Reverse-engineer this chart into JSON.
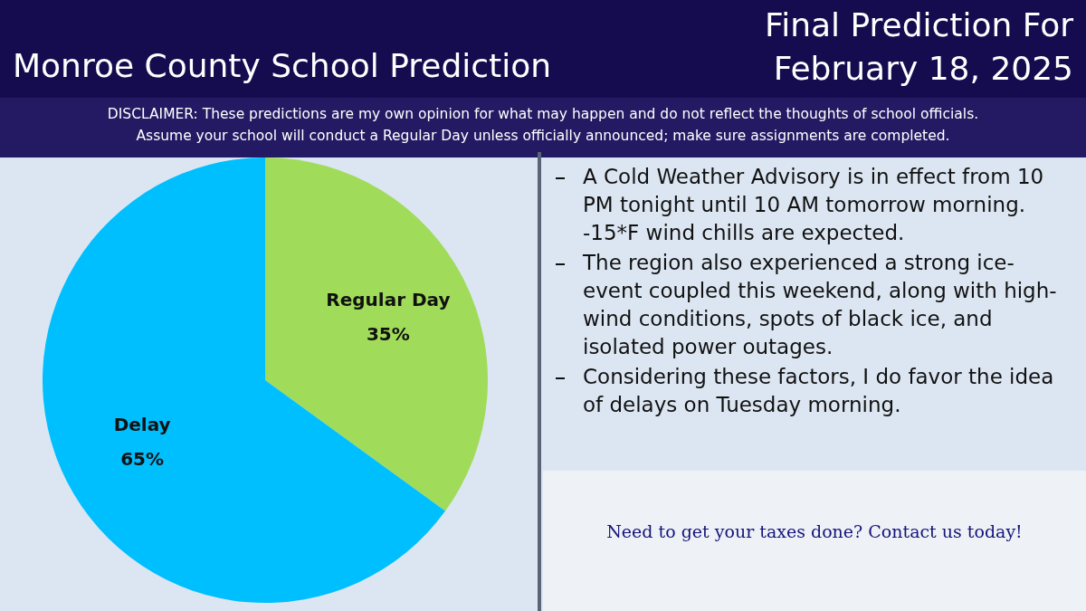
{
  "chart_data": {
    "type": "pie",
    "title": "Monroe County School Prediction",
    "subtitle": "Final Prediction For February 18, 2025",
    "categories": [
      "Regular Day",
      "Delay"
    ],
    "values": [
      35,
      65
    ],
    "colors": [
      "#a0dc5a",
      "#00bfff"
    ],
    "value_labels": [
      "35%",
      "65%"
    ],
    "legend": false,
    "annotations": [
      "DISCLAIMER: These predictions are my own opinion for what may happen and do not reflect the thoughts of school officials.",
      "Assume your school will conduct a Regular Day unless officially announced; make sure assignments are completed.",
      "A Cold Weather Advisory is in effect from 10 PM tonight until 10 AM tomorrow morning. -15*F wind chills are expected.",
      "The region also experienced a strong ice-event coupled this weekend, along with high-wind conditions, spots of black ice, and isolated power outages.",
      "Considering these factors, I do favor the idea of delays on Tuesday morning.",
      "Need to get your taxes done? Contact us today!"
    ]
  }
}
